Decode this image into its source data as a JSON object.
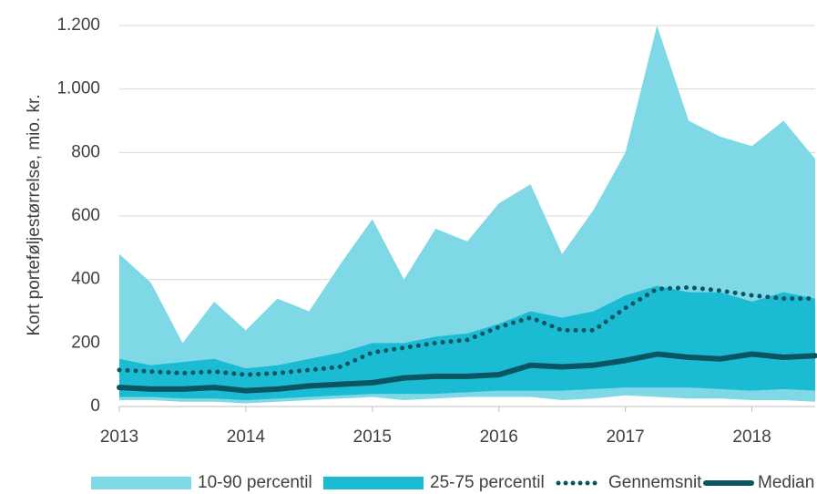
{
  "chart_data": {
    "type": "band-line",
    "y_label": "Kort porteføljestørrelse, mio. kr.",
    "x": [
      2013,
      2013.25,
      2013.5,
      2013.75,
      2014,
      2014.25,
      2014.5,
      2014.75,
      2015,
      2015.25,
      2015.5,
      2015.75,
      2016,
      2016.25,
      2016.5,
      2016.75,
      2017,
      2017.25,
      2017.5,
      2017.75,
      2018,
      2018.25,
      2018.5
    ],
    "xlim": [
      2013,
      2018.5
    ],
    "xticks": [
      2013,
      2014,
      2015,
      2016,
      2017,
      2018
    ],
    "ylim": [
      0,
      1200
    ],
    "yticks": [
      0,
      200,
      400,
      600,
      800,
      {
        "value": 1000,
        "label": "1.000"
      },
      {
        "value": 1200,
        "label": "1.200"
      }
    ],
    "grid": true,
    "legend": "bottom",
    "series": [
      {
        "name": "10-90 percentil",
        "style": "band",
        "color": "#7fd8e6",
        "values": [
          480,
          390,
          200,
          330,
          240,
          340,
          300,
          450,
          590,
          400,
          560,
          520,
          640,
          700,
          480,
          620,
          800,
          1200,
          900,
          850,
          820,
          900,
          780
        ],
        "lower": [
          20,
          20,
          15,
          15,
          10,
          15,
          20,
          25,
          30,
          20,
          25,
          30,
          30,
          30,
          20,
          25,
          35,
          30,
          25,
          25,
          20,
          20,
          15
        ]
      },
      {
        "name": "25-75 percentil",
        "style": "band",
        "color": "#1bbcd3",
        "values": [
          150,
          130,
          140,
          150,
          120,
          130,
          150,
          170,
          200,
          200,
          220,
          230,
          260,
          300,
          280,
          300,
          350,
          380,
          360,
          360,
          330,
          360,
          340
        ],
        "lower": [
          30,
          30,
          25,
          25,
          20,
          25,
          30,
          35,
          40,
          40,
          40,
          45,
          50,
          50,
          50,
          55,
          60,
          60,
          60,
          55,
          50,
          55,
          50
        ]
      },
      {
        "name": "Gennemsnit",
        "style": "dotted",
        "color": "#0b5563",
        "values": [
          115,
          110,
          105,
          110,
          100,
          105,
          115,
          125,
          170,
          185,
          200,
          210,
          250,
          280,
          240,
          240,
          310,
          370,
          375,
          365,
          350,
          340,
          340
        ]
      },
      {
        "name": "Median",
        "style": "line",
        "color": "#0b5563",
        "values": [
          60,
          55,
          55,
          60,
          50,
          55,
          65,
          70,
          75,
          90,
          95,
          95,
          100,
          130,
          125,
          130,
          145,
          165,
          155,
          150,
          165,
          155,
          160
        ]
      }
    ]
  }
}
